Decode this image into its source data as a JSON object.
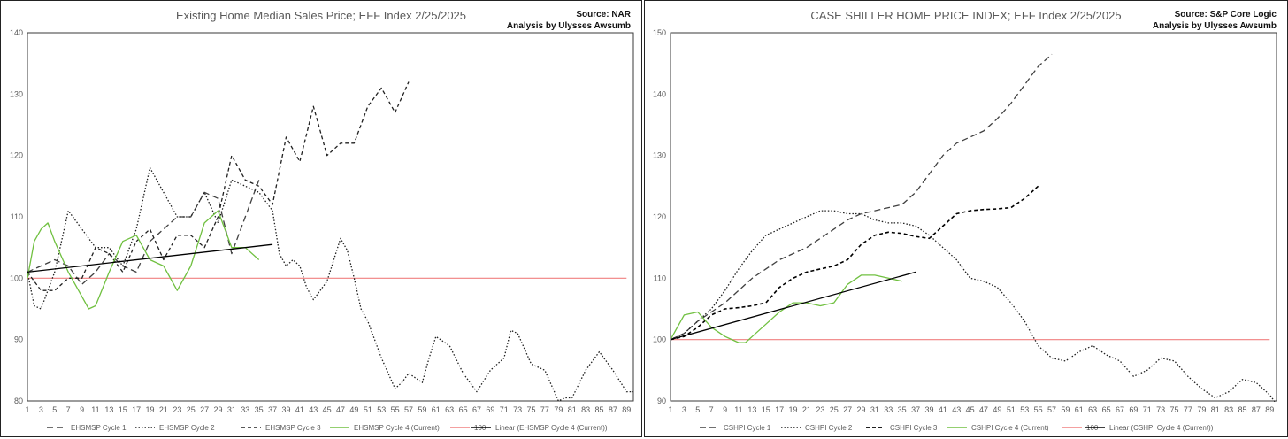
{
  "chart_data": [
    {
      "type": "line",
      "title": "Existing Home Median Sales Price; EFF Index 2/25/2025",
      "source": "Source: NAR",
      "credit": "Analysis by Ulysses Awsumb",
      "xlabel": "",
      "ylabel": "",
      "xlim": [
        1,
        90
      ],
      "ylim": [
        80,
        140
      ],
      "yticks": [
        80,
        90,
        100,
        110,
        120,
        130,
        140
      ],
      "xticks": [
        1,
        3,
        5,
        7,
        9,
        11,
        13,
        15,
        17,
        19,
        21,
        23,
        25,
        27,
        29,
        31,
        33,
        35,
        37,
        39,
        41,
        43,
        45,
        47,
        49,
        51,
        53,
        55,
        57,
        59,
        61,
        63,
        65,
        67,
        69,
        71,
        73,
        75,
        77,
        79,
        81,
        83,
        85,
        87,
        89
      ],
      "grid": false,
      "legend": "bottom",
      "series": [
        {
          "name": "EHSMSP Cycle 1",
          "color": "#404040",
          "dash": "7,4",
          "width": 1.3,
          "x": [
            1,
            3,
            5,
            7,
            9,
            11,
            13,
            15,
            17,
            19,
            21,
            23,
            25,
            27,
            29,
            31,
            33,
            35
          ],
          "values": [
            101,
            102,
            103,
            102,
            99,
            101,
            104,
            102,
            101,
            106,
            108,
            110,
            110,
            114,
            113,
            104,
            110,
            116
          ]
        },
        {
          "name": "EHSMSP Cycle 2",
          "color": "#202020",
          "dash": "1.5,2",
          "width": 1.3,
          "x": [
            1,
            2,
            3,
            5,
            7,
            9,
            11,
            13,
            15,
            17,
            19,
            21,
            23,
            25,
            27,
            29,
            31,
            33,
            35,
            37,
            38,
            39,
            40,
            41,
            42,
            43,
            44,
            45,
            47,
            48,
            49,
            50,
            51,
            52,
            53,
            55,
            56,
            57,
            59,
            60,
            61,
            63,
            65,
            67,
            69,
            71,
            72,
            73,
            75,
            77,
            79,
            80,
            81,
            83,
            85,
            87,
            89,
            90
          ],
          "values": [
            101,
            95.5,
            95,
            101,
            111,
            108,
            105,
            105,
            102,
            108,
            118,
            114,
            110,
            110,
            114,
            109,
            116,
            115,
            114,
            111,
            104,
            102,
            103,
            102,
            98.5,
            96.5,
            98,
            99.5,
            106.5,
            104.5,
            100,
            95,
            93,
            90,
            87,
            82,
            83,
            84.5,
            83,
            87,
            90.5,
            89,
            84.5,
            81.5,
            85,
            87,
            91.5,
            91,
            86,
            85,
            80,
            80.5,
            80.5,
            85,
            88,
            85,
            81.5,
            81.5
          ]
        },
        {
          "name": "EHSMSP Cycle 3",
          "color": "#202020",
          "dash": "4,3",
          "width": 1.3,
          "x": [
            1,
            3,
            5,
            7,
            9,
            11,
            13,
            15,
            17,
            19,
            21,
            23,
            25,
            27,
            29,
            31,
            33,
            35,
            37,
            39,
            41,
            43,
            45,
            47,
            49,
            51,
            53,
            55,
            57
          ],
          "values": [
            101,
            98,
            98,
            100,
            100,
            105,
            104,
            101,
            106,
            108,
            103,
            107,
            107,
            105,
            110,
            120,
            116,
            115,
            112,
            123,
            119,
            128,
            120,
            122,
            122,
            128,
            131,
            127,
            132
          ]
        },
        {
          "name": "EHSMSP Cycle 4 (Current)",
          "color": "#70c040",
          "dash": "",
          "width": 1.3,
          "x": [
            1,
            2,
            3,
            4,
            5,
            7,
            9,
            10,
            11,
            13,
            15,
            17,
            19,
            21,
            23,
            25,
            27,
            29,
            31,
            33,
            35
          ],
          "values": [
            100,
            106,
            108,
            109,
            106,
            101,
            97,
            95,
            95.5,
            101,
            106,
            107,
            103,
            102,
            98,
            102,
            109,
            111,
            105,
            105,
            103
          ]
        },
        {
          "name": "100",
          "color": "#f08080",
          "dash": "",
          "width": 1.2,
          "x": [
            1,
            89
          ],
          "values": [
            100,
            100
          ]
        },
        {
          "name": "Linear (EHSMSP Cycle 4 (Current))",
          "color": "#000000",
          "dash": "",
          "width": 1.3,
          "x": [
            1,
            37
          ],
          "values": [
            101,
            105.5
          ]
        }
      ]
    },
    {
      "type": "line",
      "title": "CASE SHILLER HOME PRICE INDEX; EFF Index 2/25/2025",
      "source": "Source: S&P Core Logic",
      "credit": "Analysis by Ulysses Awsumb",
      "xlabel": "",
      "ylabel": "",
      "xlim": [
        1,
        90
      ],
      "ylim": [
        90,
        150
      ],
      "yticks": [
        90,
        100,
        110,
        120,
        130,
        140,
        150
      ],
      "xticks": [
        1,
        3,
        5,
        7,
        9,
        11,
        13,
        15,
        17,
        19,
        21,
        23,
        25,
        27,
        29,
        31,
        33,
        35,
        37,
        39,
        41,
        43,
        45,
        47,
        49,
        51,
        53,
        55,
        57,
        59,
        61,
        63,
        65,
        67,
        69,
        71,
        73,
        75,
        77,
        79,
        81,
        83,
        85,
        87,
        89
      ],
      "grid": false,
      "legend": "bottom",
      "series": [
        {
          "name": "CSHPI Cycle 1",
          "color": "#404040",
          "dash": "7,4",
          "width": 1.3,
          "x": [
            1,
            3,
            5,
            7,
            9,
            11,
            13,
            15,
            17,
            19,
            21,
            23,
            25,
            27,
            29,
            31,
            33,
            35,
            37,
            39,
            41,
            43,
            45,
            47,
            49,
            51,
            53,
            55,
            57
          ],
          "values": [
            100,
            101,
            103,
            104.5,
            106,
            108,
            110,
            111.5,
            113,
            114,
            115,
            116.5,
            118,
            119.5,
            120.5,
            121,
            121.5,
            122,
            124,
            127,
            130,
            132,
            133,
            134,
            136,
            138.5,
            141.5,
            144.5,
            146.5
          ]
        },
        {
          "name": "CSHPI Cycle 2",
          "color": "#202020",
          "dash": "1.5,2",
          "width": 1.3,
          "x": [
            1,
            3,
            5,
            7,
            9,
            11,
            13,
            15,
            17,
            19,
            21,
            23,
            25,
            27,
            29,
            31,
            33,
            35,
            37,
            39,
            41,
            43,
            45,
            47,
            49,
            51,
            53,
            55,
            57,
            59,
            61,
            63,
            65,
            67,
            69,
            71,
            73,
            75,
            77,
            79,
            81,
            83,
            85,
            87,
            89,
            90
          ],
          "values": [
            100,
            101,
            103,
            105,
            108,
            111.5,
            114.5,
            117,
            118,
            119,
            120,
            121,
            121,
            120.5,
            120.5,
            119.5,
            119,
            119,
            118.5,
            117,
            115,
            113,
            110,
            109.5,
            108.5,
            106,
            103,
            99,
            97,
            96.5,
            98,
            99,
            97.5,
            96.5,
            94,
            95,
            97,
            96.5,
            94,
            92,
            90.5,
            91.5,
            93.5,
            93,
            91,
            89.5
          ]
        },
        {
          "name": "CSHPI Cycle 3",
          "color": "#000000",
          "dash": "4,3",
          "width": 1.6,
          "x": [
            1,
            3,
            5,
            7,
            9,
            11,
            13,
            15,
            17,
            19,
            21,
            23,
            25,
            27,
            29,
            31,
            33,
            35,
            37,
            39,
            41,
            43,
            45,
            47,
            49,
            51,
            53,
            55
          ],
          "values": [
            100,
            100.5,
            102,
            104,
            105,
            105.2,
            105.5,
            106,
            108.5,
            110,
            111,
            111.5,
            112,
            113,
            115.5,
            117,
            117.5,
            117.3,
            116.8,
            116.5,
            118.5,
            120.5,
            121,
            121.2,
            121.3,
            121.5,
            123,
            125
          ]
        },
        {
          "name": "CSHPI Cycle 4 (Current)",
          "color": "#70c040",
          "dash": "",
          "width": 1.3,
          "x": [
            1,
            3,
            5,
            7,
            9,
            11,
            12,
            13,
            15,
            17,
            19,
            21,
            23,
            25,
            27,
            29,
            31,
            33,
            35
          ],
          "values": [
            100,
            104,
            104.5,
            102,
            100.5,
            99.5,
            99.5,
            100.5,
            102.5,
            104.5,
            106,
            106,
            105.5,
            106,
            109,
            110.5,
            110.5,
            110,
            109.5
          ]
        },
        {
          "name": "100",
          "color": "#f08080",
          "dash": "",
          "width": 1.2,
          "x": [
            1,
            89
          ],
          "values": [
            100,
            100
          ]
        },
        {
          "name": "Linear (CSHPI Cycle 4 (Current))",
          "color": "#000000",
          "dash": "",
          "width": 1.3,
          "x": [
            1,
            37
          ],
          "values": [
            100,
            111
          ]
        }
      ]
    }
  ]
}
